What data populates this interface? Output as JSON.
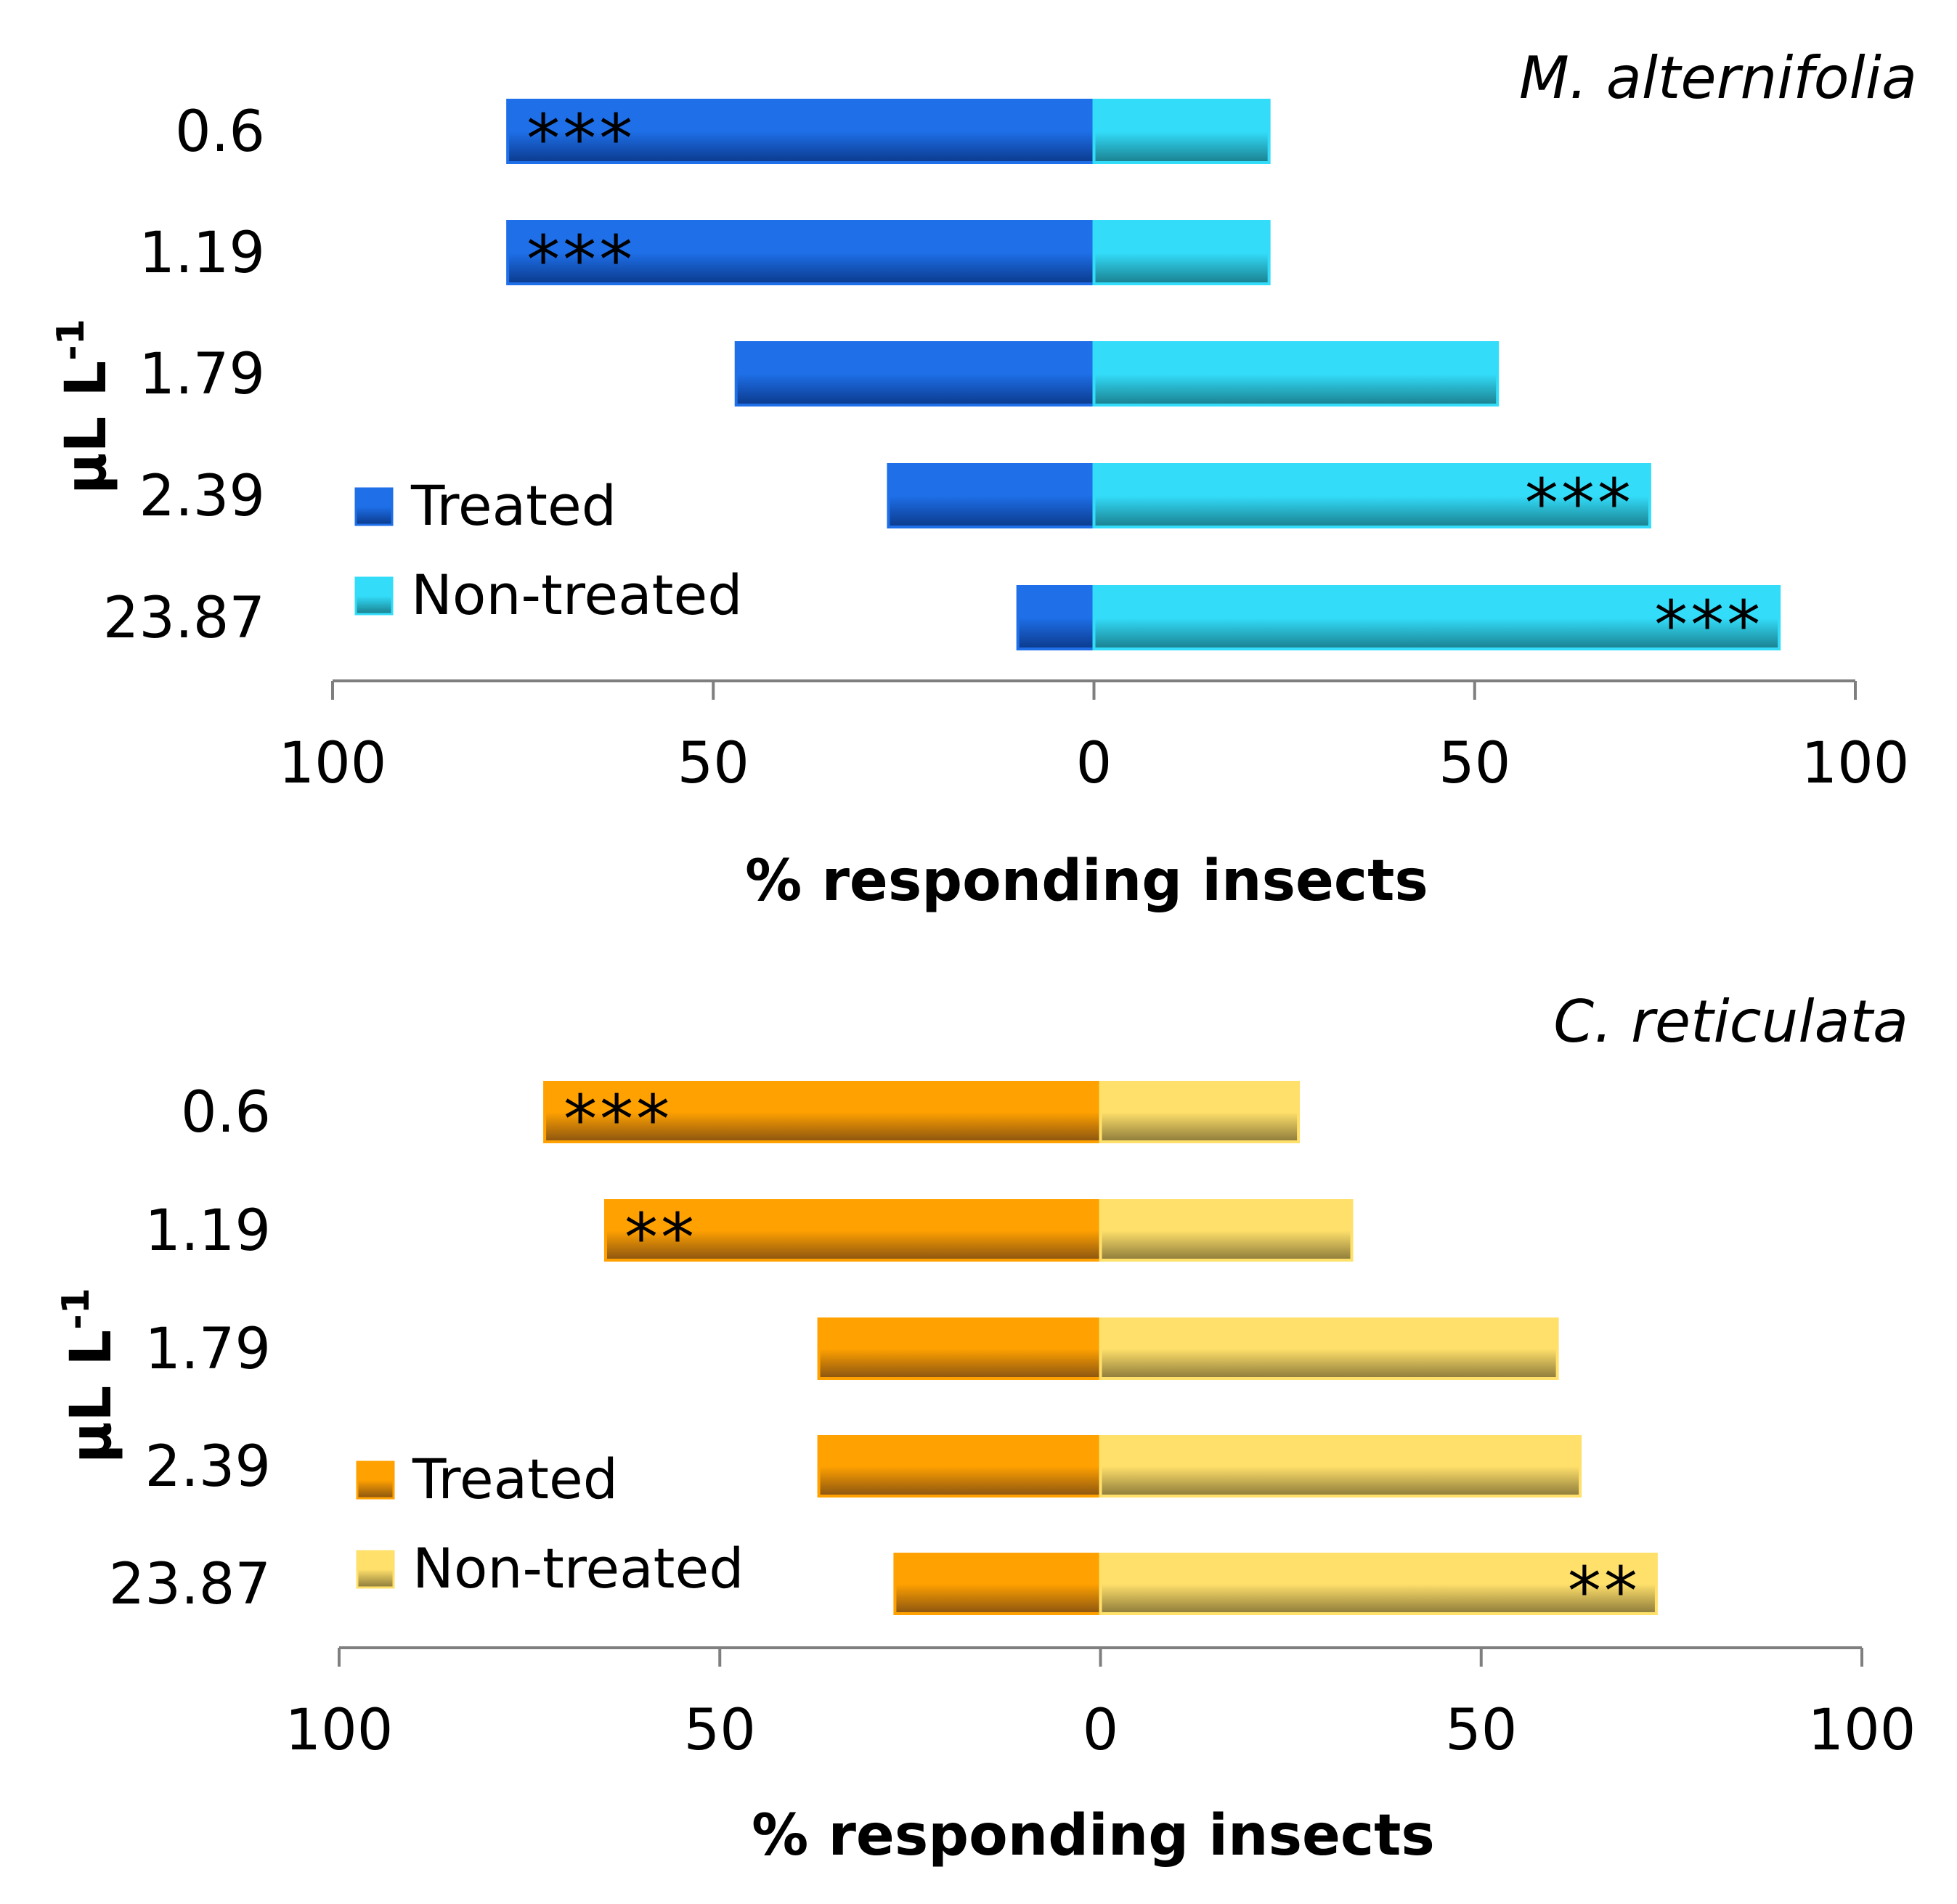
{
  "chart_data": [
    {
      "type": "bar",
      "orientation": "horizontal-diverging",
      "title": "M. alternifolia",
      "xlabel": "% responding insects",
      "ylabel_main": "µL L",
      "ylabel_sup": "-1",
      "categories": [
        "0.6",
        "1.19",
        "1.79",
        "2.39",
        "23.87"
      ],
      "xlim": [
        -100,
        100
      ],
      "x_ticks": [
        -100,
        -50,
        0,
        50,
        100
      ],
      "x_tick_labels": [
        "100",
        "50",
        "0",
        "50",
        "100"
      ],
      "legend_position": "left-middle",
      "series": [
        {
          "name": "Treated",
          "side": "left",
          "values": [
            77,
            77,
            47,
            27,
            10
          ],
          "color": "#1E6FE8",
          "shade": "#0B3A8C"
        },
        {
          "name": "Non-treated",
          "side": "right",
          "values": [
            23,
            23,
            53,
            73,
            90
          ],
          "color": "#33DDFA",
          "shade": "#1A7F8E"
        }
      ],
      "annotations": [
        {
          "category": "0.6",
          "series": "Treated",
          "text": "***"
        },
        {
          "category": "1.19",
          "series": "Treated",
          "text": "***"
        },
        {
          "category": "2.39",
          "series": "Non-treated",
          "text": "***"
        },
        {
          "category": "23.87",
          "series": "Non-treated",
          "text": "***"
        }
      ]
    },
    {
      "type": "bar",
      "orientation": "horizontal-diverging",
      "title": "C. reticulata",
      "xlabel": "% responding insects",
      "ylabel_main": "µL L",
      "ylabel_sup": "-1",
      "categories": [
        "0.6",
        "1.19",
        "1.79",
        "2.39",
        "23.87"
      ],
      "xlim": [
        -100,
        100
      ],
      "x_ticks": [
        -100,
        -50,
        0,
        50,
        100
      ],
      "x_tick_labels": [
        "100",
        "50",
        "0",
        "50",
        "100"
      ],
      "legend_position": "left-middle",
      "series": [
        {
          "name": "Treated",
          "side": "left",
          "values": [
            73,
            65,
            37,
            37,
            27
          ],
          "color": "#FFA100",
          "shade": "#8A5410"
        },
        {
          "name": "Non-treated",
          "side": "right",
          "values": [
            26,
            33,
            60,
            63,
            73
          ],
          "color": "#FFE06B",
          "shade": "#8C7A3A"
        }
      ],
      "annotations": [
        {
          "category": "0.6",
          "series": "Treated",
          "text": "***"
        },
        {
          "category": "1.19",
          "series": "Treated",
          "text": "**"
        },
        {
          "category": "23.87",
          "series": "Non-treated",
          "text": "**"
        }
      ]
    }
  ]
}
